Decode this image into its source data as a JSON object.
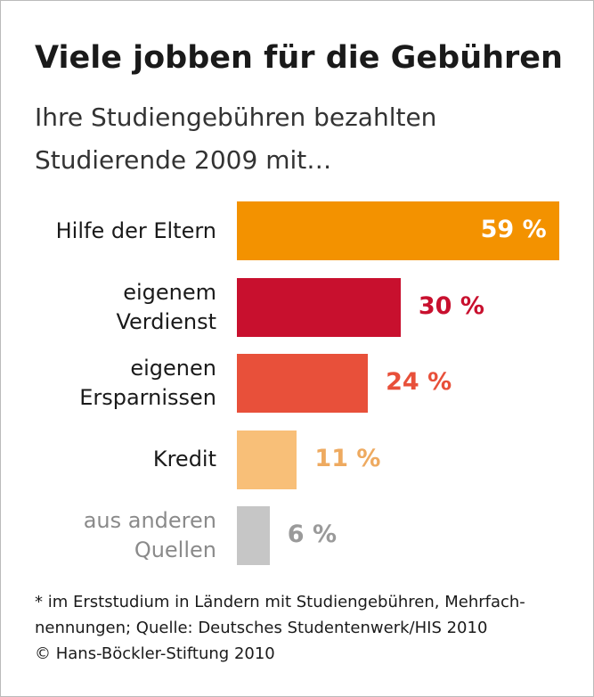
{
  "chart_data": {
    "type": "bar",
    "orientation": "horizontal",
    "title": "Viele jobben für die Gebühren",
    "subtitle": [
      "Ihre Studiengebühren bezahlten",
      "Studierende 2009 mit…"
    ],
    "categories": [
      "Hilfe der Eltern",
      "eigenem\nVerdienst",
      "eigenen\nErsparnissen",
      "Kredit",
      "aus anderen\nQuellen"
    ],
    "values": [
      59,
      30,
      24,
      11,
      6
    ],
    "value_labels": [
      "59 %",
      "30 %",
      "24 %",
      "11 %",
      "6 %"
    ],
    "colors": [
      "#f39200",
      "#c8102e",
      "#e8503a",
      "#f8bf78",
      "#c6c6c6"
    ],
    "label_colors": [
      "#ffffff",
      "#c8102e",
      "#e8503a",
      "#eeaa60",
      "#9a9a9a"
    ],
    "category_colors": [
      "#1a1a1a",
      "#1a1a1a",
      "#1a1a1a",
      "#1a1a1a",
      "#8a8a8a"
    ],
    "footnote": [
      "* im Erststudium in Ländern mit Studiengebühren, Mehrfach-",
      "nennungen; Quelle: Deutsches Studentenwerk/HIS 2010"
    ],
    "source": "© Hans-Böckler-Stiftung 2010"
  }
}
